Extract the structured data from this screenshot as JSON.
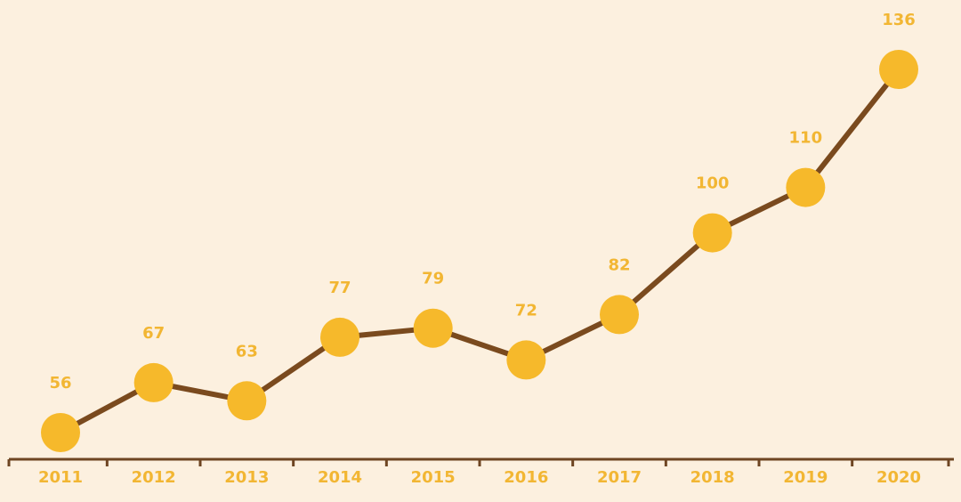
{
  "chart_data": {
    "type": "line",
    "title": "",
    "xlabel": "",
    "ylabel": "",
    "categories": [
      "2011",
      "2012",
      "2013",
      "2014",
      "2015",
      "2016",
      "2017",
      "2018",
      "2019",
      "2020"
    ],
    "series": [
      {
        "values": [
          56,
          67,
          63,
          77,
          79,
          72,
          82,
          100,
          110,
          136
        ]
      }
    ],
    "ylim": [
      50,
      138
    ],
    "grid": false,
    "legend": "none",
    "colors": {
      "background": "#FCF0DF",
      "line": "#7A4A1E",
      "marker": "#F6B92B",
      "label": "#F2B633",
      "axis": "#6E4522"
    }
  }
}
